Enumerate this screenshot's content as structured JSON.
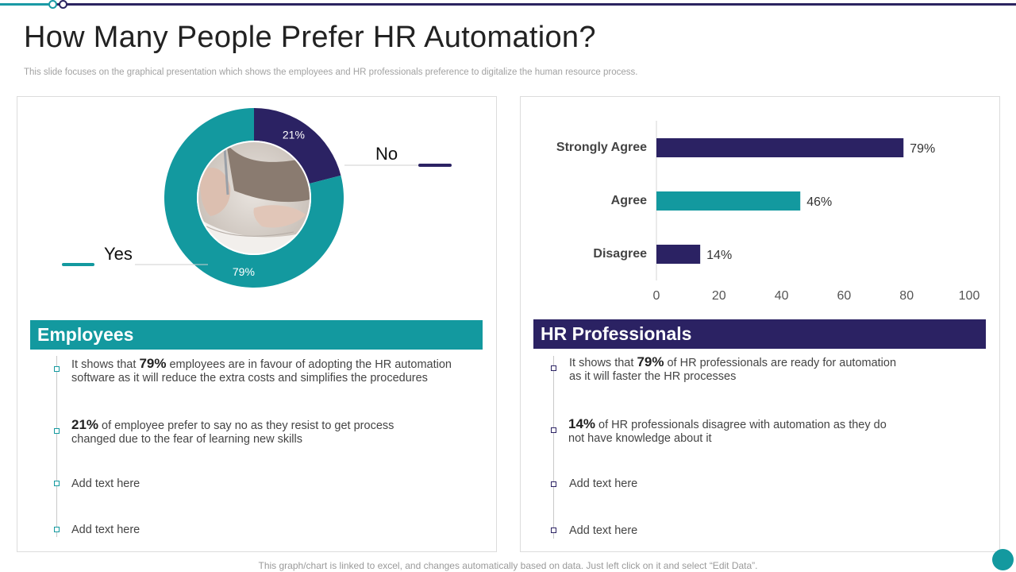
{
  "header": {
    "title": "How Many People Prefer HR Automation?",
    "subtitle": "This slide focuses on the graphical presentation which shows the employees and HR professionals preference to digitalize the human resource process."
  },
  "colors": {
    "teal": "#13999f",
    "navy": "#2b2263"
  },
  "chart_data": [
    {
      "type": "pie",
      "style": "donut",
      "center_image": "hand-writing-with-pen photo",
      "slices": [
        {
          "label": "No",
          "value": 21,
          "display": "21%",
          "color": "#2b2263"
        },
        {
          "label": "Yes",
          "value": 79,
          "display": "79%",
          "color": "#13999f"
        }
      ]
    },
    {
      "type": "bar",
      "orientation": "horizontal",
      "categories": [
        "Strongly Agree",
        "Agree",
        "Disagree"
      ],
      "values": [
        79,
        46,
        14
      ],
      "value_labels": [
        "79%",
        "46%",
        "14%"
      ],
      "colors": [
        "#2b2263",
        "#13999f",
        "#2b2263"
      ],
      "xlim": [
        0,
        100
      ],
      "x_ticks": [
        "0",
        "20",
        "40",
        "60",
        "80",
        "100"
      ],
      "grid": false
    }
  ],
  "employees": {
    "heading": "Employees",
    "items": [
      {
        "bold": "79%",
        "pre": "It shows that ",
        "line1": " employees are in favour of adopting the HR automation",
        "line2": "software as it will reduce the extra costs and simplifies the procedures"
      },
      {
        "bold": "21%",
        "pre": "",
        "line1": " of employee prefer to say no as they resist to get process",
        "line2": "changed due to the fear of learning new skills"
      },
      {
        "text": "Add text here"
      },
      {
        "text": "Add text here"
      }
    ]
  },
  "hr": {
    "heading": "HR Professionals",
    "items": [
      {
        "bold": "79%",
        "pre": "It shows that ",
        "line1": " of HR professionals are ready for automation",
        "line2": "as it will faster the HR processes"
      },
      {
        "bold": "14%",
        "pre": "",
        "line1": " of HR professionals disagree with automation as they do",
        "line2": "not have knowledge about it"
      },
      {
        "text": "Add text here"
      },
      {
        "text": "Add text here"
      }
    ]
  },
  "footer": {
    "note": "This graph/chart is linked to excel,  and changes automatically based on data. Just left click on it and select “Edit Data”."
  }
}
